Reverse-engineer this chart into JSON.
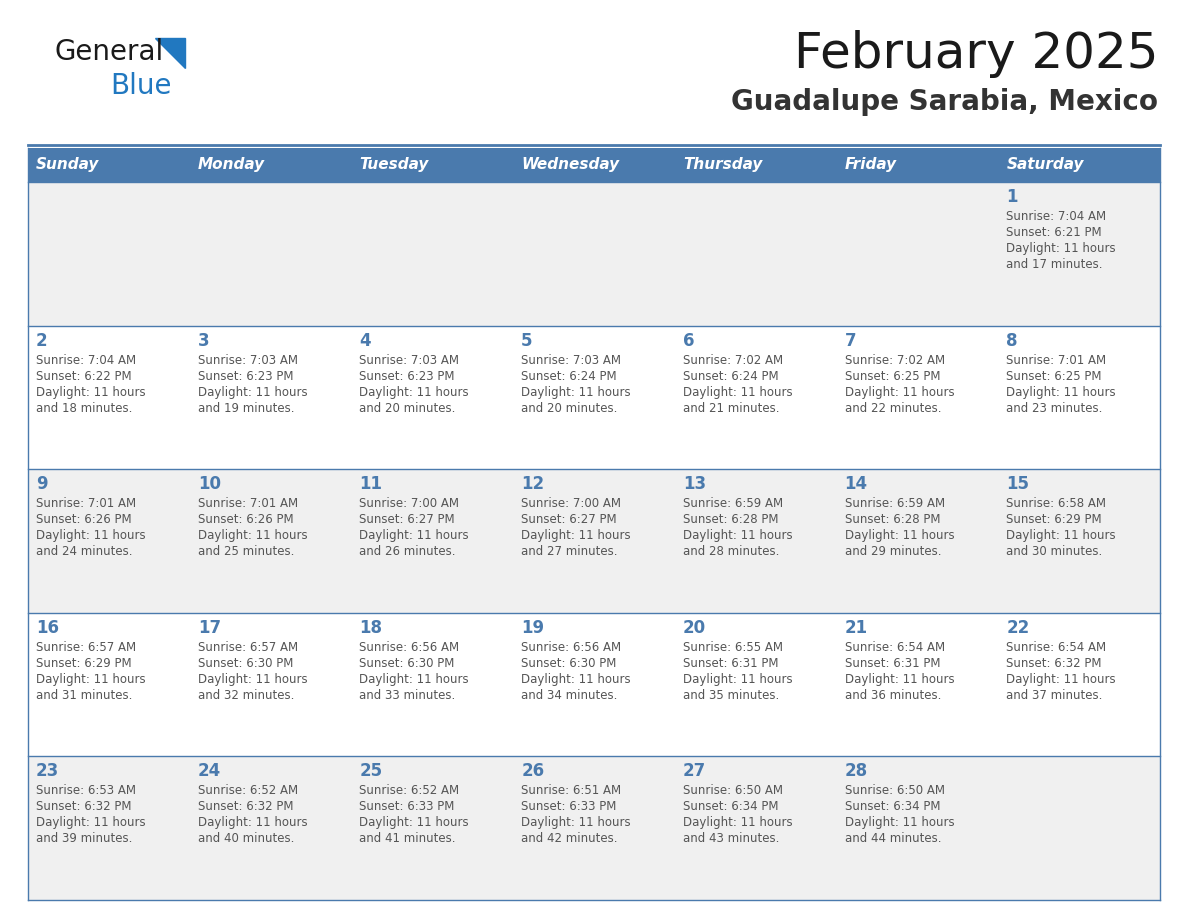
{
  "title": "February 2025",
  "subtitle": "Guadalupe Sarabia, Mexico",
  "header_bg_color": "#4a7aad",
  "header_text_color": "#ffffff",
  "day_names": [
    "Sunday",
    "Monday",
    "Tuesday",
    "Wednesday",
    "Thursday",
    "Friday",
    "Saturday"
  ],
  "row_bg_color": "#f0f0f0",
  "cell_border_color": "#4a7aad",
  "day_number_color": "#4a7aad",
  "info_text_color": "#555555",
  "title_color": "#1a1a1a",
  "subtitle_color": "#333333",
  "logo_text_color": "#1a1a1a",
  "logo_blue_color": "#2178c0",
  "calendar": [
    [
      {
        "day": null,
        "sunrise": null,
        "sunset": null,
        "daylight": null
      },
      {
        "day": null,
        "sunrise": null,
        "sunset": null,
        "daylight": null
      },
      {
        "day": null,
        "sunrise": null,
        "sunset": null,
        "daylight": null
      },
      {
        "day": null,
        "sunrise": null,
        "sunset": null,
        "daylight": null
      },
      {
        "day": null,
        "sunrise": null,
        "sunset": null,
        "daylight": null
      },
      {
        "day": null,
        "sunrise": null,
        "sunset": null,
        "daylight": null
      },
      {
        "day": 1,
        "sunrise": "7:04 AM",
        "sunset": "6:21 PM",
        "daylight": "11 hours and 17 minutes"
      }
    ],
    [
      {
        "day": 2,
        "sunrise": "7:04 AM",
        "sunset": "6:22 PM",
        "daylight": "11 hours and 18 minutes"
      },
      {
        "day": 3,
        "sunrise": "7:03 AM",
        "sunset": "6:23 PM",
        "daylight": "11 hours and 19 minutes"
      },
      {
        "day": 4,
        "sunrise": "7:03 AM",
        "sunset": "6:23 PM",
        "daylight": "11 hours and 20 minutes"
      },
      {
        "day": 5,
        "sunrise": "7:03 AM",
        "sunset": "6:24 PM",
        "daylight": "11 hours and 20 minutes"
      },
      {
        "day": 6,
        "sunrise": "7:02 AM",
        "sunset": "6:24 PM",
        "daylight": "11 hours and 21 minutes"
      },
      {
        "day": 7,
        "sunrise": "7:02 AM",
        "sunset": "6:25 PM",
        "daylight": "11 hours and 22 minutes"
      },
      {
        "day": 8,
        "sunrise": "7:01 AM",
        "sunset": "6:25 PM",
        "daylight": "11 hours and 23 minutes"
      }
    ],
    [
      {
        "day": 9,
        "sunrise": "7:01 AM",
        "sunset": "6:26 PM",
        "daylight": "11 hours and 24 minutes"
      },
      {
        "day": 10,
        "sunrise": "7:01 AM",
        "sunset": "6:26 PM",
        "daylight": "11 hours and 25 minutes"
      },
      {
        "day": 11,
        "sunrise": "7:00 AM",
        "sunset": "6:27 PM",
        "daylight": "11 hours and 26 minutes"
      },
      {
        "day": 12,
        "sunrise": "7:00 AM",
        "sunset": "6:27 PM",
        "daylight": "11 hours and 27 minutes"
      },
      {
        "day": 13,
        "sunrise": "6:59 AM",
        "sunset": "6:28 PM",
        "daylight": "11 hours and 28 minutes"
      },
      {
        "day": 14,
        "sunrise": "6:59 AM",
        "sunset": "6:28 PM",
        "daylight": "11 hours and 29 minutes"
      },
      {
        "day": 15,
        "sunrise": "6:58 AM",
        "sunset": "6:29 PM",
        "daylight": "11 hours and 30 minutes"
      }
    ],
    [
      {
        "day": 16,
        "sunrise": "6:57 AM",
        "sunset": "6:29 PM",
        "daylight": "11 hours and 31 minutes"
      },
      {
        "day": 17,
        "sunrise": "6:57 AM",
        "sunset": "6:30 PM",
        "daylight": "11 hours and 32 minutes"
      },
      {
        "day": 18,
        "sunrise": "6:56 AM",
        "sunset": "6:30 PM",
        "daylight": "11 hours and 33 minutes"
      },
      {
        "day": 19,
        "sunrise": "6:56 AM",
        "sunset": "6:30 PM",
        "daylight": "11 hours and 34 minutes"
      },
      {
        "day": 20,
        "sunrise": "6:55 AM",
        "sunset": "6:31 PM",
        "daylight": "11 hours and 35 minutes"
      },
      {
        "day": 21,
        "sunrise": "6:54 AM",
        "sunset": "6:31 PM",
        "daylight": "11 hours and 36 minutes"
      },
      {
        "day": 22,
        "sunrise": "6:54 AM",
        "sunset": "6:32 PM",
        "daylight": "11 hours and 37 minutes"
      }
    ],
    [
      {
        "day": 23,
        "sunrise": "6:53 AM",
        "sunset": "6:32 PM",
        "daylight": "11 hours and 39 minutes"
      },
      {
        "day": 24,
        "sunrise": "6:52 AM",
        "sunset": "6:32 PM",
        "daylight": "11 hours and 40 minutes"
      },
      {
        "day": 25,
        "sunrise": "6:52 AM",
        "sunset": "6:33 PM",
        "daylight": "11 hours and 41 minutes"
      },
      {
        "day": 26,
        "sunrise": "6:51 AM",
        "sunset": "6:33 PM",
        "daylight": "11 hours and 42 minutes"
      },
      {
        "day": 27,
        "sunrise": "6:50 AM",
        "sunset": "6:34 PM",
        "daylight": "11 hours and 43 minutes"
      },
      {
        "day": 28,
        "sunrise": "6:50 AM",
        "sunset": "6:34 PM",
        "daylight": "11 hours and 44 minutes"
      },
      {
        "day": null,
        "sunrise": null,
        "sunset": null,
        "daylight": null
      }
    ]
  ]
}
